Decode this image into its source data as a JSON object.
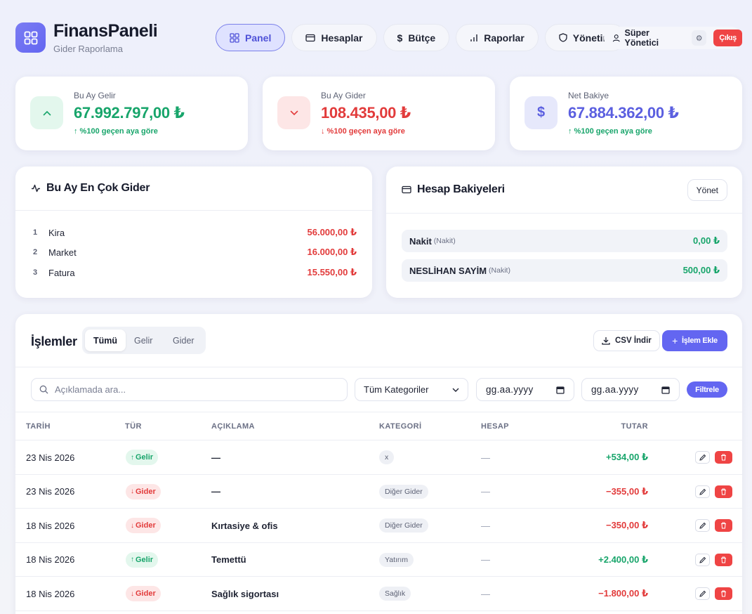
{
  "brand": {
    "title": "FinansPaneli",
    "subtitle": "Gider Raporlama",
    "icon": "grid-icon"
  },
  "nav": [
    {
      "label": "Panel",
      "icon": "grid-icon",
      "active": true
    },
    {
      "label": "Hesaplar",
      "icon": "credit-card-icon"
    },
    {
      "label": "Bütçe",
      "icon": "dollar-icon"
    },
    {
      "label": "Raporlar",
      "icon": "bar-chart-icon"
    },
    {
      "label": "Yönetim",
      "icon": "shield-icon"
    }
  ],
  "user": {
    "name": "Süper Yönetici",
    "logout_label": "Çıkış"
  },
  "stats": [
    {
      "label": "Bu Ay Gelir",
      "value": "67.992.797,00 ₺",
      "change": "↑ %100 geçen aya göre",
      "icon": "chevron-up-icon",
      "color": "#18a56b"
    },
    {
      "label": "Bu Ay Gider",
      "value": "108.435,00 ₺",
      "change": "↓ %100 geçen aya göre",
      "icon": "chevron-down-icon",
      "color": "#e23b3b"
    },
    {
      "label": "Net Bakiye",
      "value": "67.884.362,00 ₺",
      "change": "↑ %100 geçen aya göre",
      "icon": "dollar-icon",
      "color": "#5b5fe0"
    }
  ],
  "top_expenses": {
    "title": "Bu Ay En Çok Gider",
    "items": [
      {
        "rank": "1",
        "name": "Kira",
        "amount": "56.000,00 ₺"
      },
      {
        "rank": "2",
        "name": "Market",
        "amount": "16.000,00 ₺"
      },
      {
        "rank": "3",
        "name": "Fatura",
        "amount": "15.550,00 ₺"
      }
    ]
  },
  "balances": {
    "title": "Hesap Bakiyeleri",
    "manage_label": "Yönet",
    "items": [
      {
        "name": "Nakit",
        "type": "(Nakit)",
        "amount": "0,00 ₺"
      },
      {
        "name": "NESLİHAN SAYİM",
        "type": "(Nakit)",
        "amount": "500,00 ₺"
      }
    ]
  },
  "transactions": {
    "title": "İşlemler",
    "tabs": [
      "Tümü",
      "Gelir",
      "Gider"
    ],
    "active_tab": "Tümü",
    "csv_label": "CSV İndir",
    "add_label": "İşlem Ekle",
    "search_placeholder": "Açıklamada ara...",
    "category_select": "Tüm Kategoriler",
    "date_from": "gg.aa.yyyy",
    "date_to": "gg.aa.yyyy",
    "filter_label": "Filtrele",
    "columns": [
      "TARİH",
      "TÜR",
      "AÇIKLAMA",
      "KATEGORİ",
      "HESAP",
      "TUTAR"
    ],
    "rows": [
      {
        "date": "23 Nis 2026",
        "type": "Gelir",
        "dir": "in",
        "desc": "—",
        "category": "x",
        "account": "—",
        "amount": "+534,00 ₺"
      },
      {
        "date": "23 Nis 2026",
        "type": "Gider",
        "dir": "out",
        "desc": "—",
        "category": "Diğer Gider",
        "account": "—",
        "amount": "−355,00 ₺"
      },
      {
        "date": "18 Nis 2026",
        "type": "Gider",
        "dir": "out",
        "desc": "Kırtasiye & ofis",
        "category": "Diğer Gider",
        "account": "—",
        "amount": "−350,00 ₺"
      },
      {
        "date": "18 Nis 2026",
        "type": "Gelir",
        "dir": "in",
        "desc": "Temettü",
        "category": "Yatırım",
        "account": "—",
        "amount": "+2.400,00 ₺"
      },
      {
        "date": "18 Nis 2026",
        "type": "Gider",
        "dir": "out",
        "desc": "Sağlık sigortası",
        "category": "Sağlık",
        "account": "—",
        "amount": "−1.800,00 ₺"
      }
    ]
  }
}
